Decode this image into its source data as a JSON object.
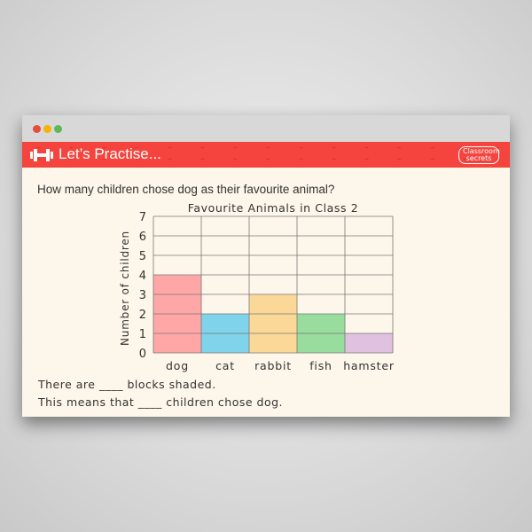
{
  "window": {
    "dots": [
      "#e84c3d",
      "#f5b400",
      "#5cb85c"
    ]
  },
  "header": {
    "title": "Let’s Practise...",
    "logo": "Classroom secrets",
    "icon": "dumbbell-icon",
    "color": "#f4443d"
  },
  "question": "How many children chose dog as their favourite animal?",
  "sentences": [
    "There are ____ blocks shaded.",
    "This means that ____ children chose dog."
  ],
  "chart_data": {
    "type": "bar",
    "title": "Favourite Animals in Class 2",
    "xlabel": "",
    "ylabel": "Number of children",
    "categories": [
      "dog",
      "cat",
      "rabbit",
      "fish",
      "hamster"
    ],
    "values": [
      4,
      2,
      3,
      2,
      1
    ],
    "colors": [
      "#ffa7a7",
      "#7fd3ea",
      "#fcd898",
      "#98dc9e",
      "#e0c1e0"
    ],
    "ylim": [
      0,
      7
    ],
    "yticks": [
      "0",
      "1",
      "2",
      "3",
      "4",
      "5",
      "6",
      "7"
    ],
    "grid": true
  }
}
